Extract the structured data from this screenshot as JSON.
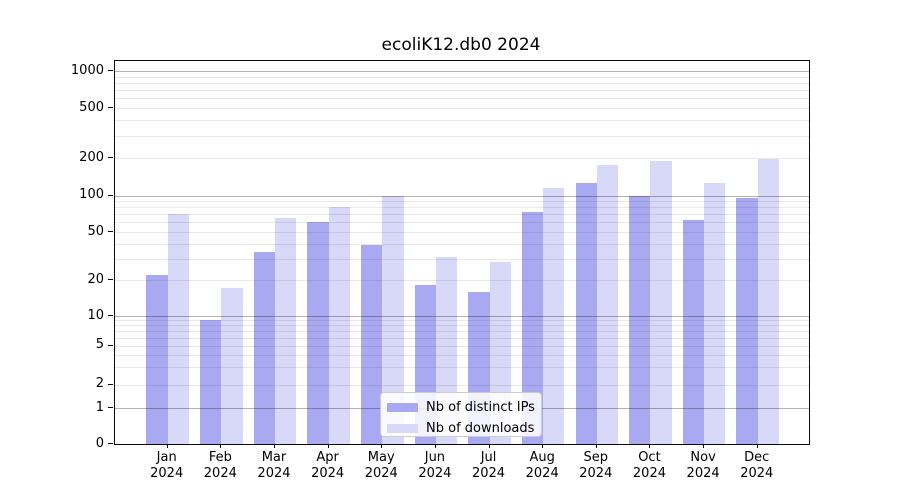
{
  "figure": {
    "background": "#ffffff"
  },
  "chart_data": {
    "type": "bar",
    "title": "ecoliK12.db0 2024",
    "categories": [
      "Jan 2024",
      "Feb 2024",
      "Mar 2024",
      "Apr 2024",
      "May 2024",
      "Jun 2024",
      "Jul 2024",
      "Aug 2024",
      "Sep 2024",
      "Oct 2024",
      "Nov 2024",
      "Dec 2024"
    ],
    "x_tick_line1": [
      "Jan",
      "Feb",
      "Mar",
      "Apr",
      "May",
      "Jun",
      "Jul",
      "Aug",
      "Sep",
      "Oct",
      "Nov",
      "Dec"
    ],
    "x_tick_line2": [
      "2024",
      "2024",
      "2024",
      "2024",
      "2024",
      "2024",
      "2024",
      "2024",
      "2024",
      "2024",
      "2024",
      "2024"
    ],
    "series": [
      {
        "name": "Nb of distinct IPs",
        "color": "#a9a9f1",
        "values": [
          22,
          9,
          34,
          60,
          39,
          18,
          16,
          73,
          125,
          100,
          63,
          95
        ]
      },
      {
        "name": "Nb of downloads",
        "color": "#d8d8f8",
        "values": [
          70,
          17,
          65,
          80,
          100,
          31,
          28,
          114,
          175,
          190,
          125,
          197
        ]
      }
    ],
    "yscale": "log",
    "ylim": [
      0,
      1000
    ],
    "ytick_labels": [
      "0",
      "1",
      "2",
      "5",
      "10",
      "20",
      "50",
      "100",
      "200",
      "500",
      "1000"
    ],
    "grid": "horizontal major and minor, drawn over bars",
    "legend_position": "lower center"
  }
}
